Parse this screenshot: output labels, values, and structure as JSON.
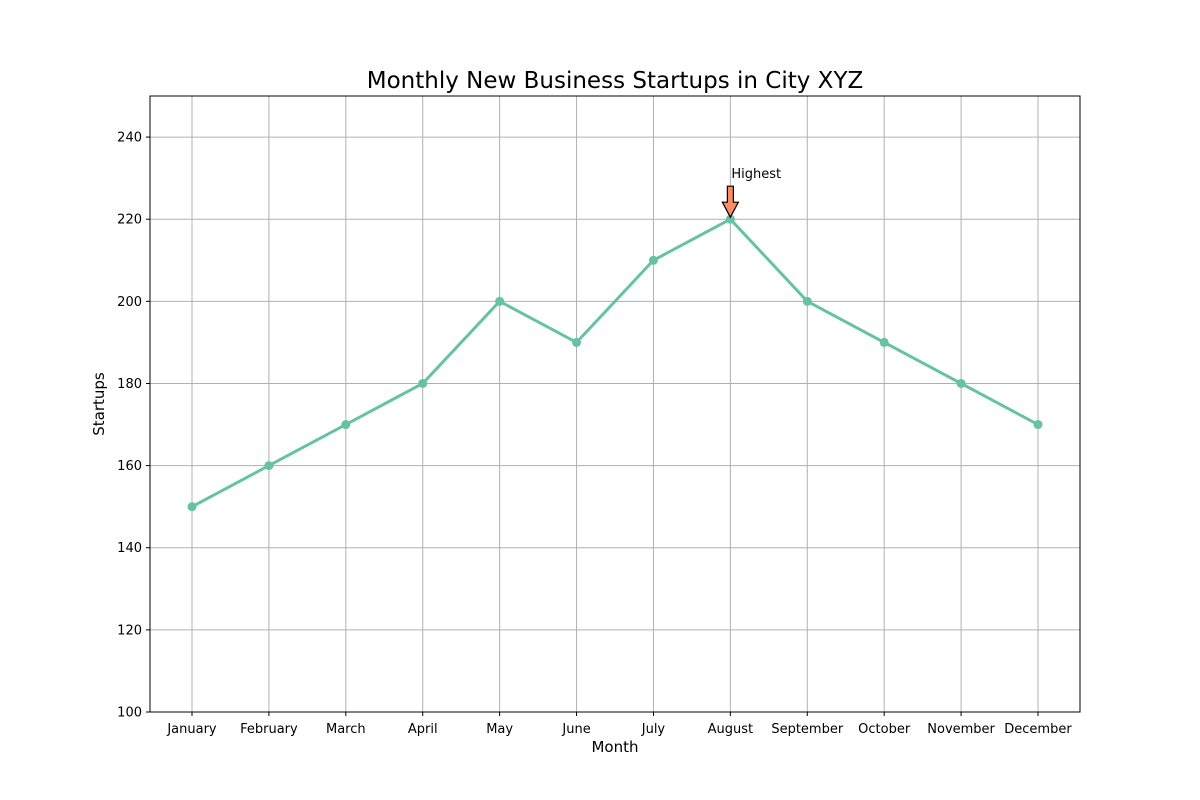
{
  "chart_data": {
    "type": "line",
    "title": "Monthly New Business Startups in City XYZ",
    "xlabel": "Month",
    "ylabel": "Startups",
    "categories": [
      "January",
      "February",
      "March",
      "April",
      "May",
      "June",
      "July",
      "August",
      "September",
      "October",
      "November",
      "December"
    ],
    "series": [
      {
        "values": [
          150,
          160,
          170,
          180,
          200,
          190,
          210,
          220,
          200,
          190,
          180,
          170
        ],
        "color": "#66c2a5",
        "marker": "circle"
      }
    ],
    "ylim": [
      100,
      250
    ],
    "yticks": [
      100,
      120,
      140,
      160,
      180,
      200,
      220,
      240
    ],
    "grid": true,
    "annotation": {
      "text": "Highest",
      "category": "August",
      "value": 220,
      "arrow_color": "#fc8d62"
    }
  }
}
